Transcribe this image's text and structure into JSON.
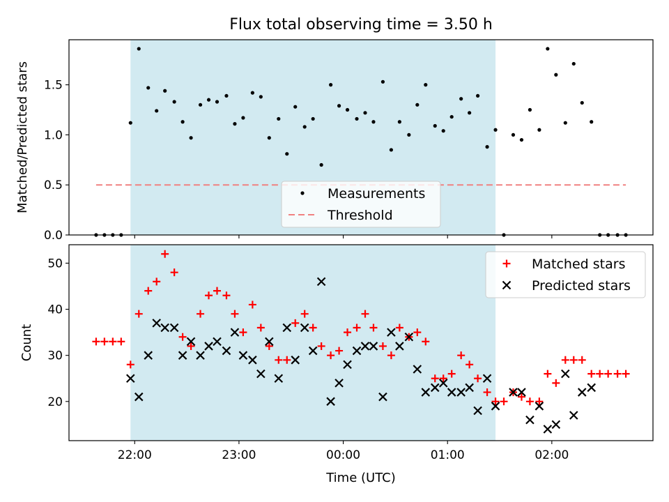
{
  "chart_data": {
    "title": "Flux total observing time = 3.50 h",
    "xlabel": "Time (UTC)",
    "x_unit": "hours since 22:00 UTC (negative = before 22:00)",
    "x_ticks": [
      {
        "x": 0,
        "label": "22:00"
      },
      {
        "x": 1,
        "label": "23:00"
      },
      {
        "x": 2,
        "label": "00:00"
      },
      {
        "x": 3,
        "label": "01:00"
      },
      {
        "x": 4,
        "label": "02:00"
      }
    ],
    "xlim": [
      -0.63,
      4.97
    ],
    "shaded_interval": {
      "start": -0.04,
      "end": 3.46,
      "color": "#add8e6"
    },
    "panels": [
      {
        "type": "scatter",
        "ylabel": "Matched/Predicted stars",
        "ylim": [
          0,
          1.95
        ],
        "y_ticks": [
          0.0,
          0.5,
          1.0,
          1.5
        ],
        "y_tick_labels": [
          "0.0",
          "0.5",
          "1.0",
          "1.5"
        ],
        "legend": {
          "position": "lower-center",
          "entries": [
            "Measurements",
            "Threshold"
          ]
        },
        "series": [
          {
            "name": "Measurements",
            "marker": "dot",
            "color": "#000000",
            "points": [
              [
                -0.37,
                0.0
              ],
              [
                -0.29,
                0.0
              ],
              [
                -0.21,
                0.0
              ],
              [
                -0.13,
                0.0
              ],
              [
                -0.04,
                1.12
              ],
              [
                0.04,
                1.86
              ],
              [
                0.13,
                1.47
              ],
              [
                0.21,
                1.24
              ],
              [
                0.29,
                1.44
              ],
              [
                0.38,
                1.33
              ],
              [
                0.46,
                1.13
              ],
              [
                0.54,
                0.97
              ],
              [
                0.63,
                1.3
              ],
              [
                0.71,
                1.35
              ],
              [
                0.79,
                1.33
              ],
              [
                0.88,
                1.39
              ],
              [
                0.96,
                1.11
              ],
              [
                1.04,
                1.17
              ],
              [
                1.13,
                1.42
              ],
              [
                1.21,
                1.38
              ],
              [
                1.29,
                0.97
              ],
              [
                1.38,
                1.16
              ],
              [
                1.46,
                0.81
              ],
              [
                1.54,
                1.28
              ],
              [
                1.63,
                1.08
              ],
              [
                1.71,
                1.16
              ],
              [
                1.79,
                0.7
              ],
              [
                1.88,
                1.5
              ],
              [
                1.96,
                1.29
              ],
              [
                2.04,
                1.25
              ],
              [
                2.13,
                1.16
              ],
              [
                2.21,
                1.22
              ],
              [
                2.29,
                1.13
              ],
              [
                2.38,
                1.53
              ],
              [
                2.46,
                0.85
              ],
              [
                2.54,
                1.13
              ],
              [
                2.63,
                1.0
              ],
              [
                2.71,
                1.3
              ],
              [
                2.79,
                1.5
              ],
              [
                2.88,
                1.09
              ],
              [
                2.96,
                1.04
              ],
              [
                3.04,
                1.18
              ],
              [
                3.13,
                1.36
              ],
              [
                3.21,
                1.22
              ],
              [
                3.29,
                1.39
              ],
              [
                3.38,
                0.88
              ],
              [
                3.46,
                1.05
              ],
              [
                3.54,
                0.0
              ],
              [
                3.63,
                1.0
              ],
              [
                3.71,
                0.95
              ],
              [
                3.79,
                1.25
              ],
              [
                3.88,
                1.05
              ],
              [
                3.96,
                1.86
              ],
              [
                4.04,
                1.6
              ],
              [
                4.13,
                1.12
              ],
              [
                4.21,
                1.71
              ],
              [
                4.29,
                1.32
              ],
              [
                4.38,
                1.13
              ],
              [
                4.46,
                0.0
              ],
              [
                4.54,
                0.0
              ],
              [
                4.63,
                0.0
              ],
              [
                4.71,
                0.0
              ]
            ]
          },
          {
            "name": "Threshold",
            "style": "dashed-line",
            "color": "#f08080",
            "points": [
              [
                -0.37,
                0.5
              ],
              [
                4.71,
                0.5
              ]
            ]
          }
        ]
      },
      {
        "type": "scatter",
        "ylabel": "Count",
        "ylim": [
          11.5,
          54
        ],
        "y_ticks": [
          20,
          30,
          40,
          50
        ],
        "y_tick_labels": [
          "20",
          "30",
          "40",
          "50"
        ],
        "legend": {
          "position": "top-right",
          "entries": [
            "Matched stars",
            "Predicted stars"
          ]
        },
        "series": [
          {
            "name": "Matched stars",
            "marker": "plus",
            "color": "#ff0000",
            "points": [
              [
                -0.37,
                33
              ],
              [
                -0.29,
                33
              ],
              [
                -0.21,
                33
              ],
              [
                -0.13,
                33
              ],
              [
                -0.04,
                28
              ],
              [
                0.04,
                39
              ],
              [
                0.13,
                44
              ],
              [
                0.21,
                46
              ],
              [
                0.29,
                52
              ],
              [
                0.38,
                48
              ],
              [
                0.46,
                34
              ],
              [
                0.54,
                32
              ],
              [
                0.63,
                39
              ],
              [
                0.71,
                43
              ],
              [
                0.79,
                44
              ],
              [
                0.88,
                43
              ],
              [
                0.96,
                39
              ],
              [
                1.04,
                35
              ],
              [
                1.13,
                41
              ],
              [
                1.21,
                36
              ],
              [
                1.29,
                32
              ],
              [
                1.38,
                29
              ],
              [
                1.46,
                29
              ],
              [
                1.54,
                37
              ],
              [
                1.63,
                39
              ],
              [
                1.71,
                36
              ],
              [
                1.79,
                32
              ],
              [
                1.88,
                30
              ],
              [
                1.96,
                31
              ],
              [
                2.04,
                35
              ],
              [
                2.13,
                36
              ],
              [
                2.21,
                39
              ],
              [
                2.29,
                36
              ],
              [
                2.38,
                32
              ],
              [
                2.46,
                30
              ],
              [
                2.54,
                36
              ],
              [
                2.63,
                34
              ],
              [
                2.71,
                35
              ],
              [
                2.79,
                33
              ],
              [
                2.88,
                25
              ],
              [
                2.96,
                25
              ],
              [
                3.04,
                26
              ],
              [
                3.13,
                30
              ],
              [
                3.21,
                28
              ],
              [
                3.29,
                25
              ],
              [
                3.38,
                22
              ],
              [
                3.46,
                20
              ],
              [
                3.54,
                20
              ],
              [
                3.63,
                22
              ],
              [
                3.71,
                21
              ],
              [
                3.79,
                20
              ],
              [
                3.88,
                20
              ],
              [
                3.96,
                26
              ],
              [
                4.04,
                24
              ],
              [
                4.13,
                29
              ],
              [
                4.21,
                29
              ],
              [
                4.29,
                29
              ],
              [
                4.38,
                26
              ],
              [
                4.46,
                26
              ],
              [
                4.54,
                26
              ],
              [
                4.63,
                26
              ],
              [
                4.71,
                26
              ]
            ]
          },
          {
            "name": "Predicted stars",
            "marker": "x",
            "color": "#000000",
            "points": [
              [
                -0.04,
                25
              ],
              [
                0.04,
                21
              ],
              [
                0.13,
                30
              ],
              [
                0.21,
                37
              ],
              [
                0.29,
                36
              ],
              [
                0.38,
                36
              ],
              [
                0.46,
                30
              ],
              [
                0.54,
                33
              ],
              [
                0.63,
                30
              ],
              [
                0.71,
                32
              ],
              [
                0.79,
                33
              ],
              [
                0.88,
                31
              ],
              [
                0.96,
                35
              ],
              [
                1.04,
                30
              ],
              [
                1.13,
                29
              ],
              [
                1.21,
                26
              ],
              [
                1.29,
                33
              ],
              [
                1.38,
                25
              ],
              [
                1.46,
                36
              ],
              [
                1.54,
                29
              ],
              [
                1.63,
                36
              ],
              [
                1.71,
                31
              ],
              [
                1.79,
                46
              ],
              [
                1.88,
                20
              ],
              [
                1.96,
                24
              ],
              [
                2.04,
                28
              ],
              [
                2.13,
                31
              ],
              [
                2.21,
                32
              ],
              [
                2.29,
                32
              ],
              [
                2.38,
                21
              ],
              [
                2.46,
                35
              ],
              [
                2.54,
                32
              ],
              [
                2.63,
                34
              ],
              [
                2.71,
                27
              ],
              [
                2.79,
                22
              ],
              [
                2.88,
                23
              ],
              [
                2.96,
                24
              ],
              [
                3.04,
                22
              ],
              [
                3.13,
                22
              ],
              [
                3.21,
                23
              ],
              [
                3.29,
                18
              ],
              [
                3.38,
                25
              ],
              [
                3.46,
                19
              ],
              [
                3.63,
                22
              ],
              [
                3.71,
                22
              ],
              [
                3.79,
                16
              ],
              [
                3.88,
                19
              ],
              [
                3.96,
                14
              ],
              [
                4.04,
                15
              ],
              [
                4.13,
                26
              ],
              [
                4.21,
                17
              ],
              [
                4.29,
                22
              ],
              [
                4.38,
                23
              ]
            ]
          }
        ]
      }
    ]
  }
}
